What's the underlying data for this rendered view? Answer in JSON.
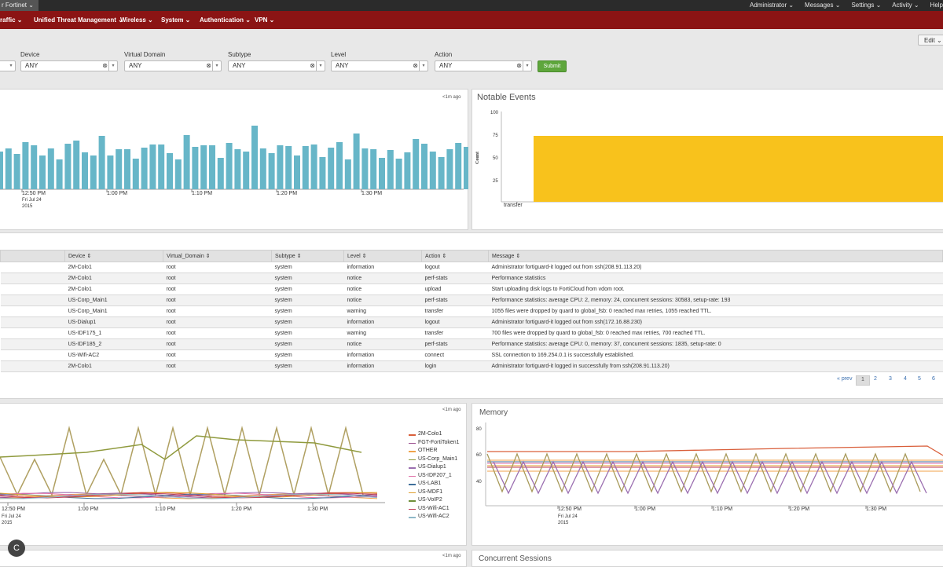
{
  "topbar": {
    "brand": "r Fortinet ⌄",
    "items": [
      "Administrator ⌄",
      "Messages ⌄",
      "Settings ⌄",
      "Activity ⌄",
      "Help"
    ]
  },
  "appbar": {
    "items": [
      "raffic ⌄",
      "Unified Threat Management ⌄",
      "Wireless ⌄",
      "System ⌄",
      "Authentication ⌄",
      "VPN ⌄"
    ]
  },
  "edit_label": "Edit ⌄",
  "filters": {
    "device": {
      "label": "Device",
      "value": "ANY"
    },
    "vdom": {
      "label": "Virtual Domain",
      "value": "ANY"
    },
    "subtype": {
      "label": "Subtype",
      "value": "ANY"
    },
    "level": {
      "label": "Level",
      "value": "ANY"
    },
    "action": {
      "label": "Action",
      "value": "ANY"
    },
    "submit": "Submit",
    "clear_glyph": "⊗",
    "dropdown_glyph": "▾"
  },
  "events_chart": {
    "ago": "<1m ago",
    "x_ticks": [
      "12:50 PM",
      "1:00 PM",
      "1:10 PM",
      "1:20 PM",
      "1:30 PM"
    ],
    "date_line1": "Fri Jul 24",
    "date_line2": "2015",
    "bar_color": "#67b6c8"
  },
  "notable": {
    "title": "Notable Events",
    "y_ticks": [
      "100",
      "75",
      "50",
      "25"
    ],
    "ylabel": "Count",
    "category": "transfer",
    "bar_color": "#f8c21c"
  },
  "table": {
    "headers": [
      "",
      "Device ⇕",
      "Virtual_Domain ⇕",
      "Subtype ⇕",
      "Level ⇕",
      "Action ⇕",
      "Message ⇕"
    ],
    "rows": [
      [
        "",
        "2M-Colo1",
        "root",
        "system",
        "information",
        "logout",
        "Administrator fortiguard-it logged out from ssh(208.91.113.20)"
      ],
      [
        "",
        "2M-Colo1",
        "root",
        "system",
        "notice",
        "perf-stats",
        "Performance statistics"
      ],
      [
        "",
        "2M-Colo1",
        "root",
        "system",
        "notice",
        "upload",
        "Start uploading disk logs to FortiCloud from vdom root."
      ],
      [
        "",
        "US-Corp_Main1",
        "root",
        "system",
        "notice",
        "perf-stats",
        "Performance statistics: average CPU: 2, memory: 24, concurrent sessions: 30583, setup-rate: 193"
      ],
      [
        "",
        "US-Corp_Main1",
        "root",
        "system",
        "warning",
        "transfer",
        "1055 files were dropped by quard to global_fsb: 0 reached max retries, 1055 reached TTL."
      ],
      [
        "",
        "US-Dialup1",
        "root",
        "system",
        "information",
        "logout",
        "Administrator fortiguard-it logged out from ssh(172.16.88.230)"
      ],
      [
        "",
        "US-IDF175_1",
        "root",
        "system",
        "warning",
        "transfer",
        "700 files were dropped by quard to global_fsb: 0 reached max retries, 700 reached TTL."
      ],
      [
        "",
        "US-IDF185_2",
        "root",
        "system",
        "notice",
        "perf-stats",
        "Performance statistics: average CPU: 0, memory: 37, concurrent sessions: 1835, setup-rate: 0"
      ],
      [
        "",
        "US-Wifi-AC2",
        "root",
        "system",
        "information",
        "connect",
        "SSL connection to 169.254.0.1 is successfully established."
      ],
      [
        "",
        "2M-Colo1",
        "root",
        "system",
        "information",
        "login",
        "Administrator fortiguard-it logged in successfully from ssh(208.91.113.20)"
      ]
    ]
  },
  "pager": {
    "prev": "« prev",
    "pages": [
      "1",
      "2",
      "3",
      "4",
      "5",
      "6"
    ]
  },
  "cpu_chart": {
    "ago": "<1m ago",
    "x_ticks": [
      "12:50 PM",
      "1:00 PM",
      "1:10 PM",
      "1:20 PM",
      "1:30 PM"
    ],
    "date_line1": "Fri Jul 24",
    "date_line2": "2015",
    "legend": [
      {
        "name": "2M-Colo1",
        "color": "#d95f3b"
      },
      {
        "name": "FGT-FortiToken1",
        "color": "#9b4f8f"
      },
      {
        "name": "OTHER",
        "color": "#f0a24a"
      },
      {
        "name": "US-Corp_Main1",
        "color": "#8f9a3d"
      },
      {
        "name": "US-Dialup1",
        "color": "#9b6fb0"
      },
      {
        "name": "US-IDF207_1",
        "color": "#e06fa8"
      },
      {
        "name": "US-LAB1",
        "color": "#3f6f9a"
      },
      {
        "name": "US-MDF1",
        "color": "#e0a030"
      },
      {
        "name": "US-VoIP2",
        "color": "#6f8f3a"
      },
      {
        "name": "US-Wifi-AC1",
        "color": "#c03a55"
      },
      {
        "name": "US-Wifi-AC2",
        "color": "#8fb8c8"
      }
    ]
  },
  "memory": {
    "title": "Memory",
    "y_ticks": [
      "80",
      "60",
      "40"
    ],
    "x_ticks": [
      "12:50 PM",
      "1:00 PM",
      "1:10 PM",
      "1:20 PM",
      "1:30 PM"
    ],
    "date_line1": "Fri Jul 24",
    "date_line2": "2015"
  },
  "bottom": {
    "ago": "<1m ago",
    "concurrent_title": "Concurrent Sessions"
  },
  "badge": "C"
}
